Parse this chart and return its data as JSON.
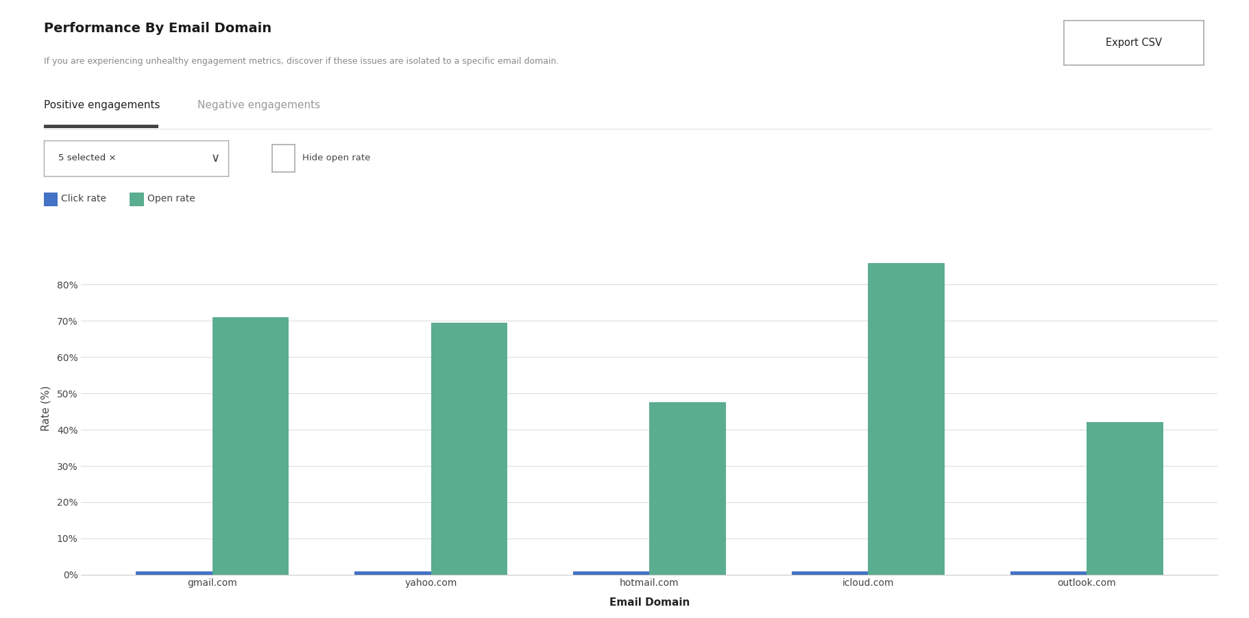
{
  "title": "Performance By Email Domain",
  "subtitle": "If you are experiencing unhealthy engagement metrics, discover if these issues are isolated to a specific email domain.",
  "tab_active": "Positive engagements",
  "tab_inactive": "Negative engagements",
  "domains": [
    "gmail.com",
    "yahoo.com",
    "hotmail.com",
    "icloud.com",
    "outlook.com"
  ],
  "click_rates": [
    1.0,
    1.0,
    1.0,
    1.0,
    1.0
  ],
  "open_rates": [
    71.0,
    69.5,
    47.5,
    86.0,
    42.0
  ],
  "click_color": "#4472C4",
  "open_color": "#5BAD8F",
  "ylabel": "Rate (%)",
  "xlabel": "Email Domain",
  "yticks": [
    0,
    10,
    20,
    30,
    40,
    50,
    60,
    70,
    80
  ],
  "ylim": [
    0,
    92
  ],
  "background_color": "#ffffff",
  "grid_color": "#dddddd",
  "bar_width": 0.35,
  "legend_click": "Click rate",
  "legend_open": "Open rate",
  "export_btn": "Export CSV",
  "dropdown_label": "5 selected ×",
  "checkbox_label": "Hide open rate",
  "title_fontsize": 14,
  "subtitle_fontsize": 9,
  "axis_label_fontsize": 11,
  "tick_fontsize": 10,
  "legend_fontsize": 10,
  "tab_fontsize": 11
}
